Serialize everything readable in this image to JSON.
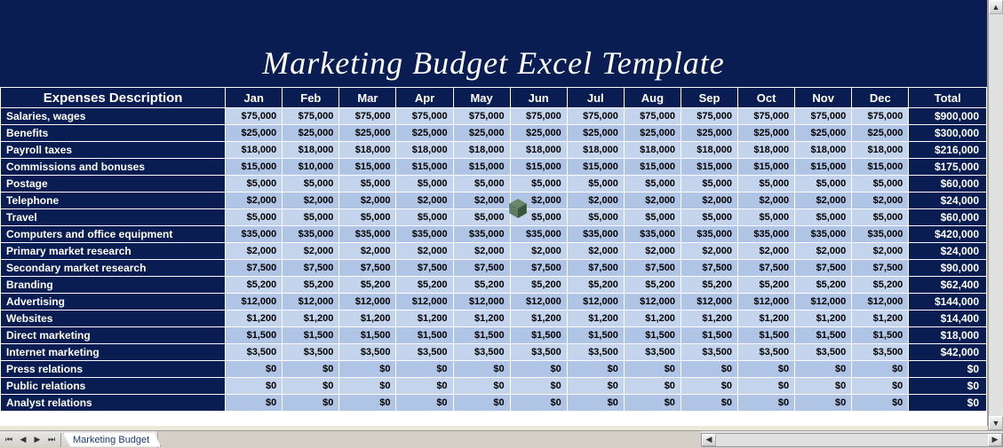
{
  "title": "Marketing Budget Excel Template",
  "sheet_tab": "Marketing Budget",
  "table": {
    "desc_header": "Expenses Description",
    "total_header": "Total",
    "months": [
      "Jan",
      "Feb",
      "Mar",
      "Apr",
      "May",
      "Jun",
      "Jul",
      "Aug",
      "Sep",
      "Oct",
      "Nov",
      "Dec"
    ],
    "header_bg": "#0a1d52",
    "header_fg": "#ffffff",
    "row_even_bg": "#c5d4ed",
    "row_odd_bg": "#b0c4e6",
    "total_col_bg": "#0a1d52",
    "grid_border": "#ffffff",
    "font_size_header": 13,
    "font_size_cell": 11,
    "rows": [
      {
        "label": "Salaries, wages",
        "vals": [
          "$75,000",
          "$75,000",
          "$75,000",
          "$75,000",
          "$75,000",
          "$75,000",
          "$75,000",
          "$75,000",
          "$75,000",
          "$75,000",
          "$75,000",
          "$75,000"
        ],
        "total": "$900,000"
      },
      {
        "label": "Benefits",
        "vals": [
          "$25,000",
          "$25,000",
          "$25,000",
          "$25,000",
          "$25,000",
          "$25,000",
          "$25,000",
          "$25,000",
          "$25,000",
          "$25,000",
          "$25,000",
          "$25,000"
        ],
        "total": "$300,000"
      },
      {
        "label": "Payroll taxes",
        "vals": [
          "$18,000",
          "$18,000",
          "$18,000",
          "$18,000",
          "$18,000",
          "$18,000",
          "$18,000",
          "$18,000",
          "$18,000",
          "$18,000",
          "$18,000",
          "$18,000"
        ],
        "total": "$216,000"
      },
      {
        "label": "Commissions and bonuses",
        "vals": [
          "$15,000",
          "$10,000",
          "$15,000",
          "$15,000",
          "$15,000",
          "$15,000",
          "$15,000",
          "$15,000",
          "$15,000",
          "$15,000",
          "$15,000",
          "$15,000"
        ],
        "total": "$175,000"
      },
      {
        "label": "Postage",
        "vals": [
          "$5,000",
          "$5,000",
          "$5,000",
          "$5,000",
          "$5,000",
          "$5,000",
          "$5,000",
          "$5,000",
          "$5,000",
          "$5,000",
          "$5,000",
          "$5,000"
        ],
        "total": "$60,000"
      },
      {
        "label": "Telephone",
        "vals": [
          "$2,000",
          "$2,000",
          "$2,000",
          "$2,000",
          "$2,000",
          "$2,000",
          "$2,000",
          "$2,000",
          "$2,000",
          "$2,000",
          "$2,000",
          "$2,000"
        ],
        "total": "$24,000"
      },
      {
        "label": "Travel",
        "vals": [
          "$5,000",
          "$5,000",
          "$5,000",
          "$5,000",
          "$5,000",
          "$5,000",
          "$5,000",
          "$5,000",
          "$5,000",
          "$5,000",
          "$5,000",
          "$5,000"
        ],
        "total": "$60,000"
      },
      {
        "label": "Computers and office equipment",
        "vals": [
          "$35,000",
          "$35,000",
          "$35,000",
          "$35,000",
          "$35,000",
          "$35,000",
          "$35,000",
          "$35,000",
          "$35,000",
          "$35,000",
          "$35,000",
          "$35,000"
        ],
        "total": "$420,000"
      },
      {
        "label": "Primary market research",
        "vals": [
          "$2,000",
          "$2,000",
          "$2,000",
          "$2,000",
          "$2,000",
          "$2,000",
          "$2,000",
          "$2,000",
          "$2,000",
          "$2,000",
          "$2,000",
          "$2,000"
        ],
        "total": "$24,000"
      },
      {
        "label": "Secondary market research",
        "vals": [
          "$7,500",
          "$7,500",
          "$7,500",
          "$7,500",
          "$7,500",
          "$7,500",
          "$7,500",
          "$7,500",
          "$7,500",
          "$7,500",
          "$7,500",
          "$7,500"
        ],
        "total": "$90,000"
      },
      {
        "label": "Branding",
        "vals": [
          "$5,200",
          "$5,200",
          "$5,200",
          "$5,200",
          "$5,200",
          "$5,200",
          "$5,200",
          "$5,200",
          "$5,200",
          "$5,200",
          "$5,200",
          "$5,200"
        ],
        "total": "$62,400"
      },
      {
        "label": "Advertising",
        "vals": [
          "$12,000",
          "$12,000",
          "$12,000",
          "$12,000",
          "$12,000",
          "$12,000",
          "$12,000",
          "$12,000",
          "$12,000",
          "$12,000",
          "$12,000",
          "$12,000"
        ],
        "total": "$144,000"
      },
      {
        "label": "Websites",
        "vals": [
          "$1,200",
          "$1,200",
          "$1,200",
          "$1,200",
          "$1,200",
          "$1,200",
          "$1,200",
          "$1,200",
          "$1,200",
          "$1,200",
          "$1,200",
          "$1,200"
        ],
        "total": "$14,400"
      },
      {
        "label": "Direct marketing",
        "vals": [
          "$1,500",
          "$1,500",
          "$1,500",
          "$1,500",
          "$1,500",
          "$1,500",
          "$1,500",
          "$1,500",
          "$1,500",
          "$1,500",
          "$1,500",
          "$1,500"
        ],
        "total": "$18,000"
      },
      {
        "label": "Internet marketing",
        "vals": [
          "$3,500",
          "$3,500",
          "$3,500",
          "$3,500",
          "$3,500",
          "$3,500",
          "$3,500",
          "$3,500",
          "$3,500",
          "$3,500",
          "$3,500",
          "$3,500"
        ],
        "total": "$42,000"
      },
      {
        "label": "Press relations",
        "vals": [
          "$0",
          "$0",
          "$0",
          "$0",
          "$0",
          "$0",
          "$0",
          "$0",
          "$0",
          "$0",
          "$0",
          "$0"
        ],
        "total": "$0"
      },
      {
        "label": "Public relations",
        "vals": [
          "$0",
          "$0",
          "$0",
          "$0",
          "$0",
          "$0",
          "$0",
          "$0",
          "$0",
          "$0",
          "$0",
          "$0"
        ],
        "total": "$0"
      },
      {
        "label": "Analyst relations",
        "vals": [
          "$0",
          "$0",
          "$0",
          "$0",
          "$0",
          "$0",
          "$0",
          "$0",
          "$0",
          "$0",
          "$0",
          "$0"
        ],
        "total": "$0"
      }
    ]
  },
  "colors": {
    "dark_navy": "#0a1d52",
    "light_row": "#c5d4ed",
    "mid_row": "#b0c4e6",
    "window_bg": "#ece9d8"
  }
}
